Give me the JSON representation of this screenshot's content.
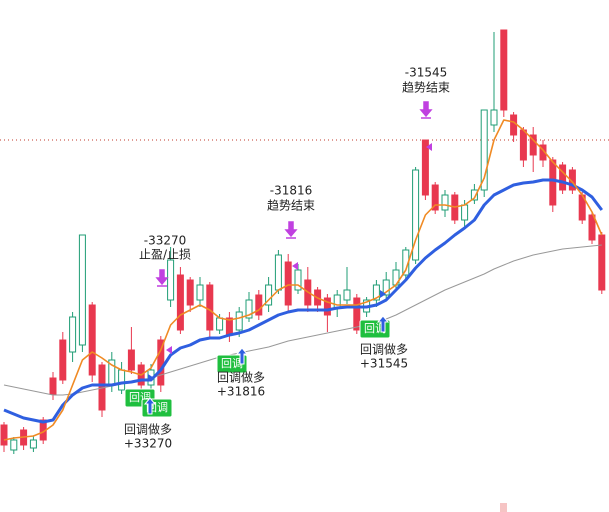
{
  "chart_data": {
    "type": "candlestick",
    "ylim": [
      0,
      512
    ],
    "up_color": "#e8384f",
    "down_color": "#1f9c74",
    "ohlc": [
      [
        67,
        90,
        60,
        87
      ],
      [
        72,
        75,
        58,
        62
      ],
      [
        67,
        85,
        62,
        82
      ],
      [
        72,
        76,
        60,
        64
      ],
      [
        72,
        95,
        68,
        92
      ],
      [
        118,
        140,
        112,
        134
      ],
      [
        132,
        180,
        128,
        172
      ],
      [
        195,
        200,
        150,
        160
      ],
      [
        277,
        277,
        160,
        167
      ],
      [
        137,
        210,
        130,
        207
      ],
      [
        102,
        150,
        95,
        147
      ],
      [
        152,
        160,
        120,
        127
      ],
      [
        142,
        150,
        118,
        122
      ],
      [
        142,
        185,
        138,
        162
      ],
      [
        127,
        150,
        122,
        147
      ],
      [
        142,
        148,
        122,
        127
      ],
      [
        127,
        176,
        120,
        172
      ],
      [
        252,
        265,
        205,
        212
      ],
      [
        182,
        245,
        178,
        237
      ],
      [
        207,
        235,
        200,
        232
      ],
      [
        227,
        235,
        205,
        212
      ],
      [
        182,
        230,
        175,
        227
      ],
      [
        194,
        198,
        178,
        182
      ],
      [
        177,
        200,
        170,
        194
      ],
      [
        200,
        205,
        175,
        182
      ],
      [
        212,
        220,
        190,
        194
      ],
      [
        197,
        222,
        192,
        217
      ],
      [
        227,
        235,
        200,
        207
      ],
      [
        257,
        262,
        218,
        222
      ],
      [
        207,
        258,
        200,
        250
      ],
      [
        242,
        248,
        218,
        222
      ],
      [
        207,
        245,
        200,
        232
      ],
      [
        207,
        225,
        200,
        222
      ],
      [
        197,
        218,
        180,
        214
      ],
      [
        217,
        222,
        195,
        204
      ],
      [
        222,
        245,
        208,
        212
      ],
      [
        182,
        218,
        178,
        214
      ],
      [
        212,
        215,
        195,
        200
      ],
      [
        227,
        232,
        205,
        212
      ],
      [
        232,
        240,
        212,
        217
      ],
      [
        242,
        250,
        222,
        227
      ],
      [
        262,
        265,
        232,
        237
      ],
      [
        342,
        345,
        248,
        252
      ],
      [
        317,
        372,
        312,
        372
      ],
      [
        302,
        330,
        298,
        327
      ],
      [
        317,
        322,
        295,
        302
      ],
      [
        292,
        320,
        288,
        317
      ],
      [
        307,
        312,
        285,
        292
      ],
      [
        322,
        328,
        308,
        312
      ],
      [
        402,
        402,
        315,
        322
      ],
      [
        402,
        480,
        380,
        387
      ],
      [
        402,
        482,
        395,
        482
      ],
      [
        377,
        400,
        370,
        397
      ],
      [
        352,
        385,
        345,
        382
      ],
      [
        357,
        385,
        340,
        377
      ],
      [
        352,
        372,
        345,
        367
      ],
      [
        307,
        355,
        300,
        352
      ],
      [
        322,
        350,
        318,
        347
      ],
      [
        322,
        345,
        318,
        342
      ],
      [
        292,
        320,
        288,
        317
      ],
      [
        272,
        300,
        268,
        297
      ],
      [
        222,
        280,
        218,
        277
      ]
    ],
    "lines": [
      {
        "color": "#999999",
        "width": 1,
        "values": [
          127,
          125,
          123,
          121,
          119,
          117,
          117,
          118,
          120,
          122,
          124,
          126,
          128,
          130,
          132,
          134,
          137,
          140,
          143,
          146,
          149,
          152,
          155,
          157,
          159,
          161,
          163,
          165,
          168,
          171,
          173,
          175,
          177,
          179,
          181,
          183,
          185,
          187,
          190,
          193,
          197,
          202,
          207,
          212,
          217,
          222,
          226,
          230,
          234,
          238,
          243,
          247,
          251,
          254,
          257,
          259,
          261,
          263,
          264,
          265,
          266,
          267
        ]
      },
      {
        "color": "#2f5fe0",
        "width": 3,
        "values": [
          102,
          98,
          94,
          92,
          90,
          92,
          107,
          117,
          124,
          127,
          127,
          127,
          129,
          130,
          132,
          132,
          142,
          157,
          164,
          167,
          172,
          174,
          174,
          177,
          179,
          182,
          187,
          192,
          197,
          200,
          202,
          202,
          202,
          202,
          204,
          205,
          205,
          205,
          207,
          212,
          222,
          232,
          244,
          254,
          262,
          269,
          277,
          284,
          292,
          307,
          317,
          322,
          327,
          329,
          330,
          332,
          332,
          330,
          327,
          322,
          315,
          302
        ]
      },
      {
        "color": "#f08a24",
        "width": 1.6,
        "values": [
          72,
          74,
          75,
          76,
          80,
          87,
          102,
          127,
          152,
          160,
          154,
          147,
          142,
          140,
          137,
          144,
          162,
          187,
          197,
          202,
          207,
          202,
          194,
          192,
          194,
          197,
          202,
          212,
          222,
          227,
          227,
          220,
          214,
          210,
          207,
          207,
          207,
          210,
          214,
          220,
          227,
          242,
          272,
          297,
          307,
          307,
          305,
          307,
          314,
          334,
          372,
          392,
          390,
          382,
          372,
          362,
          350,
          340,
          330,
          317,
          300,
          277
        ]
      }
    ],
    "reference_line": {
      "value": 372,
      "color": "#c0392b"
    },
    "annotations": [
      {
        "lines": [
          "-33270",
          "止盈/止损"
        ]
      },
      {
        "lines": [
          "回调做多",
          "+33270"
        ]
      },
      {
        "lines": [
          "-31816",
          "趋势结束"
        ]
      },
      {
        "lines": [
          "回调做多",
          "+31816"
        ]
      },
      {
        "lines": [
          "-31545",
          "趋势结束"
        ]
      },
      {
        "lines": [
          "回调做多",
          "+31545"
        ]
      }
    ],
    "badges": [
      "回调",
      "回调",
      "回调",
      "回调"
    ]
  }
}
